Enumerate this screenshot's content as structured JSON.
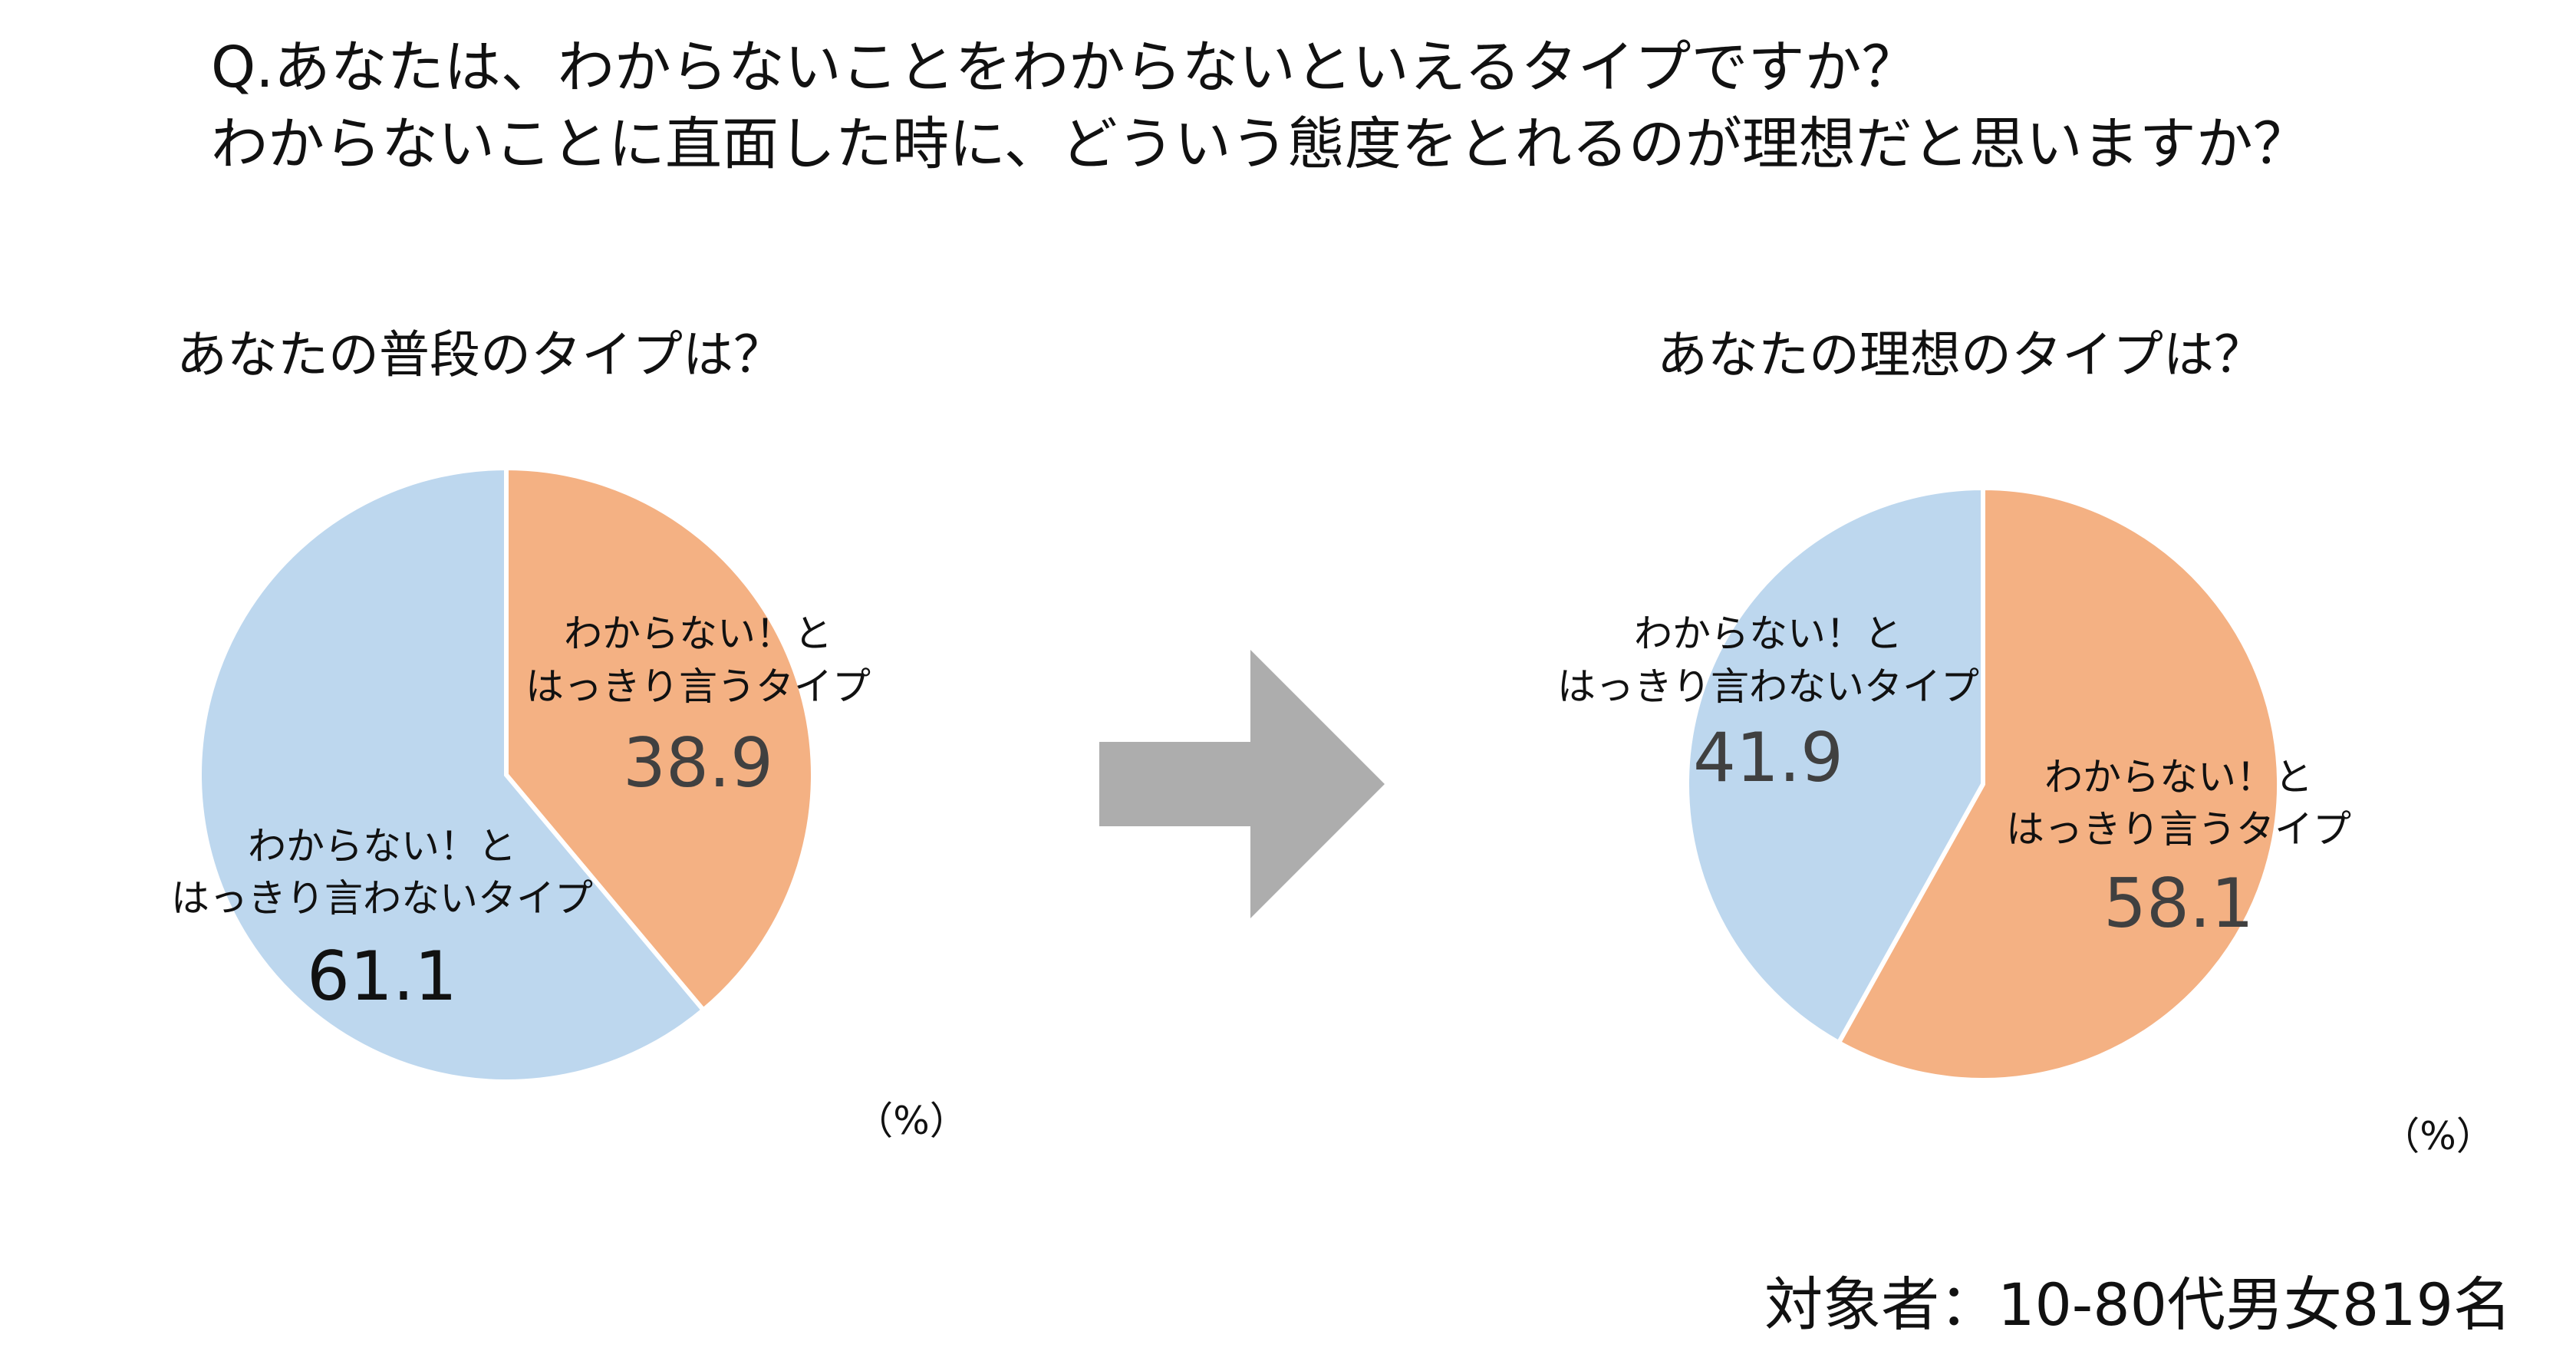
{
  "question": {
    "line1": "Q.あなたは、わからないことをわからないといえるタイプですか？",
    "line2": "わからないことに直面した時に、どういう態度をとれるのが理想だと思いますか？"
  },
  "colors": {
    "orange": "#F4B183",
    "blue": "#BDD7EE",
    "arrow": "#ADADAD",
    "text_dark": "#111111",
    "text_gray": "#404040"
  },
  "chart_data": [
    {
      "type": "pie",
      "title": "あなたの普段のタイプは？",
      "unit": "（%）",
      "slices": [
        {
          "label_line1": "わからない！と",
          "label_line2": "はっきり言うタイプ",
          "value": 38.9,
          "value_label": "38.9",
          "color": "#F4B183"
        },
        {
          "label_line1": "わからない！と",
          "label_line2": "はっきり言わないタイプ",
          "value": 61.1,
          "value_label": "61.1",
          "color": "#BDD7EE"
        }
      ]
    },
    {
      "type": "pie",
      "title": "あなたの理想のタイプは？",
      "unit": "（%）",
      "slices": [
        {
          "label_line1": "わからない！と",
          "label_line2": "はっきり言うタイプ",
          "value": 58.1,
          "value_label": "58.1",
          "color": "#F4B183"
        },
        {
          "label_line1": "わからない！と",
          "label_line2": "はっきり言わないタイプ",
          "value": 41.9,
          "value_label": "41.9",
          "color": "#BDD7EE"
        }
      ]
    }
  ],
  "footer": "対象者：10-80代男女819名"
}
